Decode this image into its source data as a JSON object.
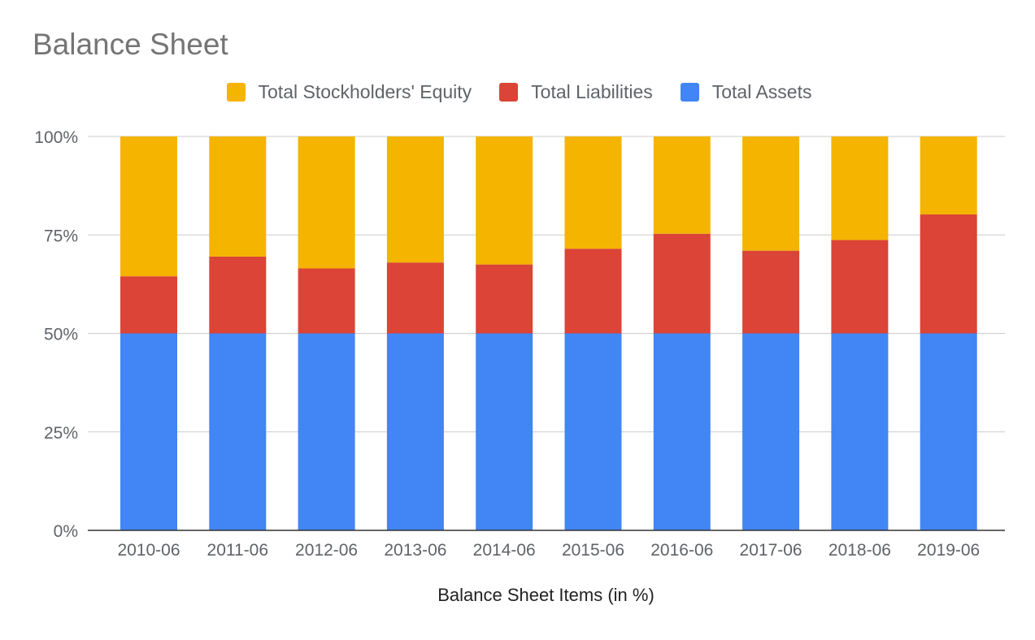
{
  "chart_data": {
    "type": "bar",
    "stacked": true,
    "normalized": true,
    "title": "Balance Sheet",
    "xlabel": "Balance Sheet Items (in %)",
    "ylabel": "",
    "ylim": [
      0,
      100
    ],
    "yticks": [
      "0%",
      "25%",
      "50%",
      "75%",
      "100%"
    ],
    "ytick_values": [
      0,
      25,
      50,
      75,
      100
    ],
    "grid": true,
    "legend_position": "top",
    "categories": [
      "2010-06",
      "2011-06",
      "2012-06",
      "2013-06",
      "2014-06",
      "2015-06",
      "2016-06",
      "2017-06",
      "2018-06",
      "2019-06"
    ],
    "series": [
      {
        "name": "Total Assets",
        "color": "#4285f4",
        "values": [
          50,
          50,
          50,
          50,
          50,
          50,
          50,
          50,
          50,
          50
        ]
      },
      {
        "name": "Total Liabilities",
        "color": "#db4437",
        "values": [
          14.5,
          19.5,
          16.5,
          18,
          17.5,
          21.5,
          25.3,
          21,
          23.7,
          30.2
        ]
      },
      {
        "name": "Total Stockholders' Equity",
        "color": "#f4b400",
        "values": [
          35.5,
          30.5,
          33.5,
          32,
          32.5,
          28.5,
          24.7,
          29,
          26.3,
          19.8
        ]
      }
    ],
    "legend": [
      {
        "name": "Total Stockholders' Equity",
        "color": "#f4b400"
      },
      {
        "name": "Total Liabilities",
        "color": "#db4437"
      },
      {
        "name": "Total Assets",
        "color": "#4285f4"
      }
    ]
  }
}
